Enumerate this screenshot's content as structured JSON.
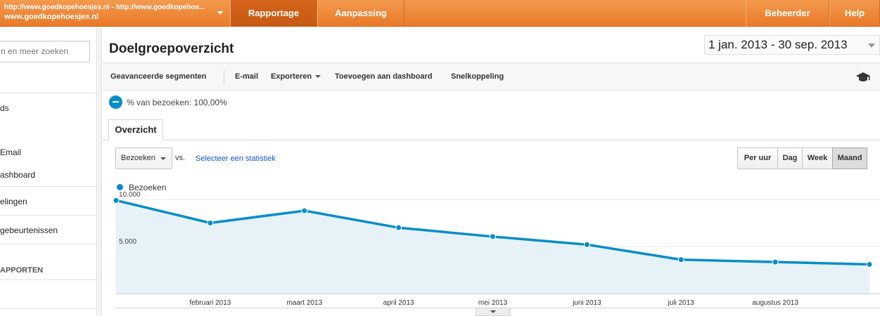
{
  "topbar": {
    "account_url": "http://www.goedkopehoesjes.nl - http://www.goedkopehoe...",
    "account_name": "www.goedkopehoesjes.nl",
    "tabs": [
      {
        "label": "Rapportage",
        "active": true
      },
      {
        "label": "Aanpassing",
        "active": false
      }
    ],
    "right_tabs": [
      {
        "label": "Beheerder"
      },
      {
        "label": "Help"
      }
    ]
  },
  "sidebar": {
    "search_placeholder": "n en meer zoeken",
    "items": [
      {
        "label": "ds"
      },
      {
        "label": "Email"
      },
      {
        "label": "ashboard"
      },
      {
        "label": "elingen"
      },
      {
        "label": "gebeurtenissen"
      },
      {
        "label": "APPORTEN"
      }
    ]
  },
  "main": {
    "title": "Doelgroepoverzicht",
    "date_range": "1 jan. 2013 - 30 sep. 2013",
    "toolbar": {
      "advanced_segments": "Geavanceerde segmenten",
      "email": "E-mail",
      "export": "Exporteren",
      "add_dashboard": "Toevoegen aan dashboard",
      "shortcut": "Snelkoppeling"
    },
    "segment_text": "% van bezoeken: 100,00%",
    "tab_overview": "Overzicht",
    "metric_select": "Bezoeken",
    "vs": "vs.",
    "select_stat": "Selecteer een statistiek",
    "period_buttons": [
      {
        "label": "Per uur",
        "active": false
      },
      {
        "label": "Dag",
        "active": false
      },
      {
        "label": "Week",
        "active": false
      },
      {
        "label": "Maand",
        "active": true
      }
    ]
  },
  "colors": {
    "accent_orange": "#ec8434",
    "series_blue": "#058dc7",
    "area_fill": "#e6f2f8",
    "link_blue": "#1155cc"
  },
  "chart_data": {
    "type": "area",
    "series": [
      {
        "name": "Bezoeken",
        "values": [
          9900,
          7500,
          8800,
          7000,
          6050,
          5200,
          3600,
          3350,
          3100
        ]
      }
    ],
    "x": [
      "",
      "februari 2013",
      "maart 2013",
      "april 2013",
      "mei 2013",
      "juni 2013",
      "juli 2013",
      "augustus 2013",
      ""
    ],
    "yticks": [
      "10.000",
      "5.000"
    ],
    "ytick_values": [
      10000,
      5000
    ],
    "ylim": [
      0,
      10000
    ],
    "grid": true
  }
}
